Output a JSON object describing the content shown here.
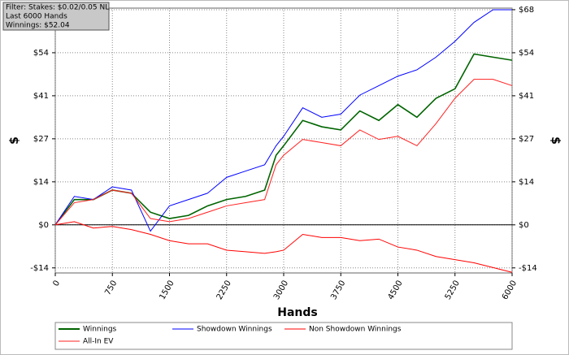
{
  "chart_data": {
    "type": "line",
    "annotations": [
      "Filter: Stakes: $0.02/0.05 NL",
      "Last  6000 Hands",
      "Winnings: $52.04"
    ],
    "xlabel": "Hands",
    "ylabel": "$",
    "y2label": "$",
    "x": [
      0,
      250,
      500,
      750,
      1000,
      1250,
      1500,
      1750,
      2000,
      2250,
      2500,
      2750,
      2900,
      3000,
      3250,
      3500,
      3750,
      4000,
      4250,
      4500,
      4750,
      5000,
      5250,
      5500,
      5750,
      6000
    ],
    "series": [
      {
        "name": "Winnings",
        "color": "#006400",
        "values": [
          0,
          8,
          8,
          11,
          10,
          4,
          2,
          3,
          6,
          8,
          9,
          11,
          22,
          25,
          33,
          31,
          30,
          36,
          33,
          38,
          34,
          40,
          43,
          54,
          53,
          52.04
        ]
      },
      {
        "name": "Showdown Winnings",
        "color": "#0000ff",
        "values": [
          0,
          9,
          8,
          12,
          11,
          -2,
          6,
          8,
          10,
          15,
          17,
          19,
          25,
          28,
          37,
          34,
          35,
          41,
          44,
          47,
          49,
          53,
          58,
          64,
          68,
          68
        ]
      },
      {
        "name": "Non Showdown Winnings",
        "color": "#ff0000",
        "values": [
          0,
          1,
          -1,
          -0.5,
          -1.5,
          -3,
          -5,
          -6,
          -6,
          -8,
          -8.5,
          -9,
          -8.5,
          -8,
          -3,
          -4,
          -4,
          -5,
          -4.5,
          -7,
          -8,
          -10,
          -11,
          -12,
          -13.5,
          -15
        ]
      },
      {
        "name": "All-In EV",
        "color": "#ff2020",
        "values": [
          0,
          7,
          8,
          11,
          10,
          2,
          1,
          2,
          4,
          6,
          7,
          8,
          19,
          22,
          27,
          26,
          25,
          30,
          27,
          28,
          25,
          32,
          40,
          46,
          46,
          44
        ]
      }
    ],
    "xlim": [
      0,
      6000
    ],
    "xticks": [
      0,
      750,
      1500,
      2250,
      3000,
      3750,
      4500,
      5250,
      6000
    ],
    "ylim": [
      -15.2,
      68.5
    ],
    "yticks": [
      {
        "value": -13.6,
        "label": "-$14"
      },
      {
        "value": 0,
        "label": "$0"
      },
      {
        "value": 13.6,
        "label": "$14"
      },
      {
        "value": 27.2,
        "label": "$27"
      },
      {
        "value": 40.8,
        "label": "$41"
      },
      {
        "value": 54.4,
        "label": "$54"
      },
      {
        "value": 68,
        "label": "$68"
      }
    ],
    "y2lim": [
      -15.2,
      68.5
    ],
    "y2ticks": [
      {
        "value": -13.6,
        "label": "-$14"
      },
      {
        "value": 0,
        "label": "$0"
      },
      {
        "value": 13.6,
        "label": "$14"
      },
      {
        "value": 27.2,
        "label": "$27"
      },
      {
        "value": 40.8,
        "label": "$41"
      },
      {
        "value": 54.4,
        "label": "$54"
      },
      {
        "value": 68,
        "label": "$68"
      }
    ],
    "grid": true
  }
}
